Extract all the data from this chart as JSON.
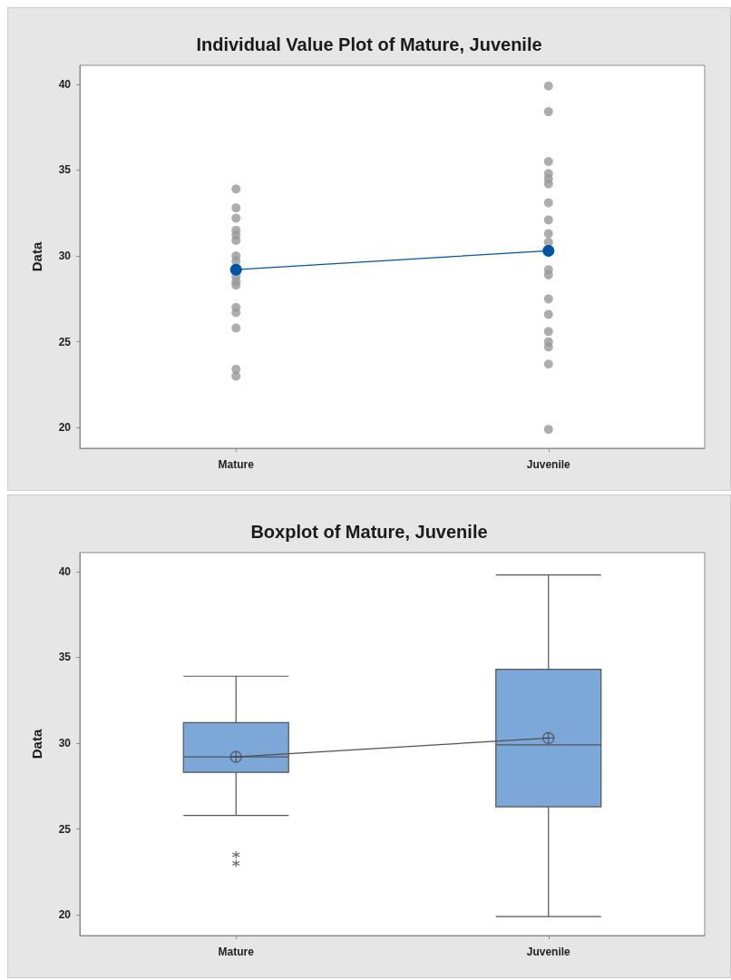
{
  "chart_data": [
    {
      "type": "scatter",
      "title": "Individual Value Plot of Mature, Juvenile",
      "ylabel": "Data",
      "categories": [
        "Mature",
        "Juvenile"
      ],
      "ylim": [
        18.8,
        41.1
      ],
      "yticks": [
        20,
        25,
        30,
        35,
        40
      ],
      "series": [
        {
          "type": "scatter",
          "color": "#999999",
          "marker": "circle",
          "x": [
            "Mature",
            "Mature",
            "Mature",
            "Mature",
            "Mature",
            "Mature",
            "Mature",
            "Mature",
            "Mature",
            "Mature",
            "Mature",
            "Mature",
            "Mature",
            "Mature",
            "Mature",
            "Mature",
            "Juvenile",
            "Juvenile",
            "Juvenile",
            "Juvenile",
            "Juvenile",
            "Juvenile",
            "Juvenile",
            "Juvenile",
            "Juvenile",
            "Juvenile",
            "Juvenile",
            "Juvenile",
            "Juvenile",
            "Juvenile",
            "Juvenile",
            "Juvenile",
            "Juvenile",
            "Juvenile",
            "Juvenile"
          ],
          "values": [
            33.9,
            32.8,
            32.2,
            31.5,
            31.2,
            30.9,
            30.0,
            29.7,
            28.8,
            28.5,
            28.3,
            27.0,
            26.7,
            25.8,
            23.4,
            23.0,
            39.9,
            38.4,
            35.5,
            34.8,
            34.5,
            34.2,
            33.1,
            32.1,
            31.3,
            30.8,
            29.2,
            28.9,
            27.5,
            26.6,
            25.6,
            25.0,
            24.7,
            23.7,
            19.9
          ]
        },
        {
          "type": "line",
          "color": "#0054a6",
          "marker": "circle",
          "values": [
            29.2,
            30.3
          ]
        }
      ]
    },
    {
      "type": "box",
      "title": "Boxplot of Mature, Juvenile",
      "ylabel": "Data",
      "categories": [
        "Mature",
        "Juvenile"
      ],
      "ylim": [
        18.8,
        41.1
      ],
      "yticks": [
        20,
        25,
        30,
        35,
        40
      ],
      "series": [
        {
          "type": "box",
          "color": "#7ba7d9",
          "boxes": [
            {
              "low": 25.8,
              "q1": 28.3,
              "median": 29.2,
              "q3": 31.2,
              "high": 33.9,
              "mean": 29.2,
              "outliers": [
                23.5,
                23.0
              ]
            },
            {
              "low": 19.9,
              "q1": 26.3,
              "median": 29.9,
              "q3": 34.3,
              "high": 39.8,
              "mean": 30.3
            }
          ]
        },
        {
          "type": "line",
          "color": "#505050",
          "marker": "none",
          "values": [
            29.2,
            30.3
          ]
        }
      ]
    }
  ]
}
